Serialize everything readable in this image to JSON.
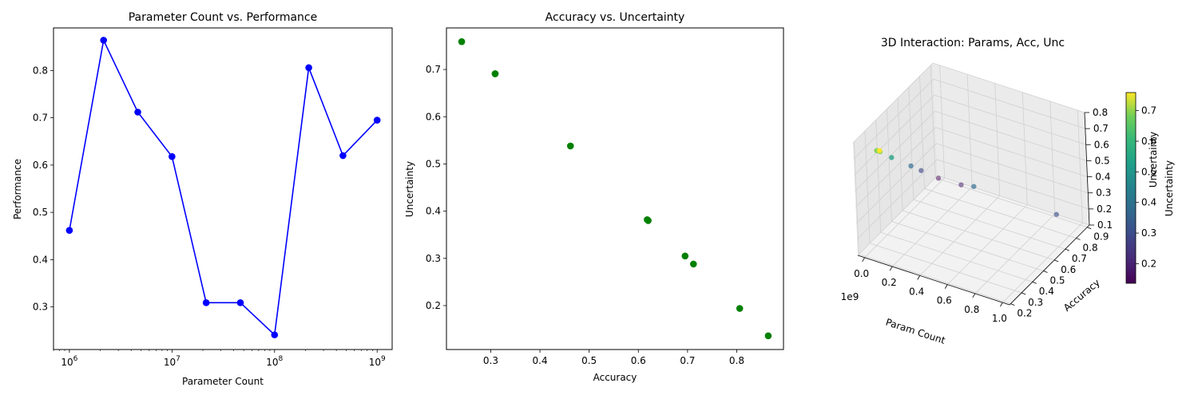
{
  "chart_data": [
    {
      "type": "line",
      "title": "Parameter Count vs. Performance",
      "xlabel": "Parameter Count",
      "ylabel": "Performance",
      "xscale": "log",
      "xlim": [
        700000,
        1400000000
      ],
      "ylim": [
        0.21,
        0.89
      ],
      "color": "#0000ff",
      "x": [
        1000000,
        2154435,
        4641589,
        10000000,
        21544347,
        46415888,
        100000000,
        215443469,
        464158883,
        1000000000
      ],
      "y": [
        0.462,
        0.864,
        0.712,
        0.618,
        0.309,
        0.309,
        0.241,
        0.806,
        0.62,
        0.695
      ],
      "x_tick_values": [
        1000000,
        10000000,
        100000000,
        1000000000
      ],
      "x_tick_base": [
        "10",
        "10",
        "10",
        "10"
      ],
      "x_tick_exp": [
        "6",
        "7",
        "8",
        "9"
      ],
      "y_ticks": [
        0.3,
        0.4,
        0.5,
        0.6,
        0.7,
        0.8
      ],
      "y_tick_labels": [
        "0.3",
        "0.4",
        "0.5",
        "0.6",
        "0.7",
        "0.8"
      ],
      "grid": false
    },
    {
      "type": "scatter",
      "title": "Accuracy vs. Uncertainty",
      "xlabel": "Accuracy",
      "ylabel": "Uncertainty",
      "xlim": [
        0.21,
        0.895
      ],
      "ylim": [
        0.107,
        0.788
      ],
      "color": "#008000",
      "x": [
        0.462,
        0.864,
        0.712,
        0.618,
        0.309,
        0.309,
        0.241,
        0.806,
        0.62,
        0.695
      ],
      "y": [
        0.538,
        0.136,
        0.288,
        0.382,
        0.691,
        0.691,
        0.759,
        0.194,
        0.38,
        0.305
      ],
      "x_ticks": [
        0.3,
        0.4,
        0.5,
        0.6,
        0.7,
        0.8
      ],
      "x_tick_labels": [
        "0.3",
        "0.4",
        "0.5",
        "0.6",
        "0.7",
        "0.8"
      ],
      "y_ticks": [
        0.2,
        0.3,
        0.4,
        0.5,
        0.6,
        0.7
      ],
      "y_tick_labels": [
        "0.2",
        "0.3",
        "0.4",
        "0.5",
        "0.6",
        "0.7"
      ],
      "grid": false
    },
    {
      "type": "scatter3d",
      "title": "3D Interaction: Params, Acc, Unc",
      "xlabel": "Param Count",
      "ylabel": "Accuracy",
      "zlabel": "Uncertainty",
      "x_offset_label": "1e9",
      "colormap": "viridis",
      "colorbar_label": "Uncertainty",
      "colorbar_ticks": [
        0.2,
        0.3,
        0.4,
        0.5,
        0.6,
        0.7
      ],
      "colorbar_tick_labels": [
        "0.2",
        "0.3",
        "0.4",
        "0.5",
        "0.6",
        "0.7"
      ],
      "colorbar_range": [
        0.136,
        0.759
      ],
      "x_ticks": [
        0.0,
        0.2,
        0.4,
        0.6,
        0.8,
        1.0
      ],
      "x_tick_labels": [
        "0.0",
        "0.2",
        "0.4",
        "0.6",
        "0.8",
        "1.0"
      ],
      "y_ticks": [
        0.2,
        0.3,
        0.4,
        0.5,
        0.6,
        0.7,
        0.8,
        0.9
      ],
      "y_tick_labels": [
        "0.2",
        "0.3",
        "0.4",
        "0.5",
        "0.6",
        "0.7",
        "0.8",
        "0.9"
      ],
      "z_ticks": [
        0.1,
        0.2,
        0.3,
        0.4,
        0.5,
        0.6,
        0.7,
        0.8
      ],
      "z_tick_labels": [
        "0.1",
        "0.2",
        "0.3",
        "0.4",
        "0.5",
        "0.6",
        "0.7",
        "0.8"
      ],
      "x": [
        0.001,
        0.0022,
        0.0046,
        0.01,
        0.0215,
        0.0464,
        0.1,
        0.2154,
        0.4642,
        1.0
      ],
      "y": [
        0.462,
        0.864,
        0.712,
        0.618,
        0.309,
        0.309,
        0.241,
        0.806,
        0.62,
        0.695
      ],
      "z": [
        0.538,
        0.136,
        0.288,
        0.382,
        0.691,
        0.691,
        0.759,
        0.194,
        0.38,
        0.305
      ],
      "grid": true
    }
  ]
}
